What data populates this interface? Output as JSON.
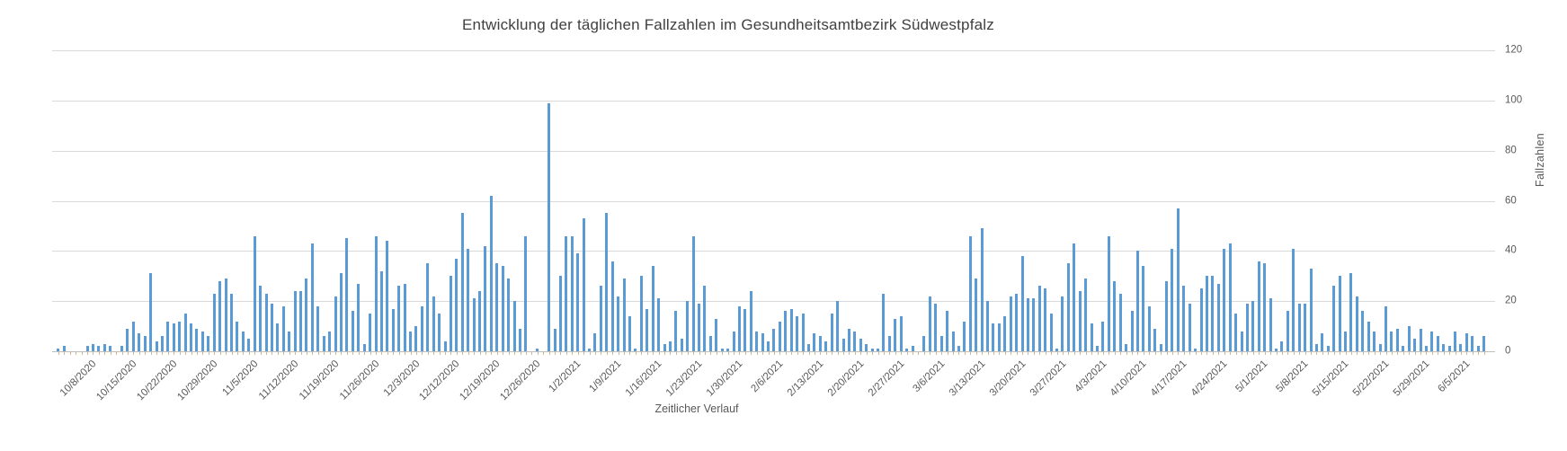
{
  "chart_data": {
    "type": "bar",
    "title": "Entwicklung der täglichen Fallzahlen im Gesundheitsamtbezirk Südwestpfalz",
    "xlabel": "Zeitlicher Verlauf",
    "ylabel": "Fallzahlen",
    "ylim": [
      0,
      120
    ],
    "yticks": [
      0,
      20,
      40,
      60,
      80,
      100,
      120
    ],
    "grid": true,
    "legend": false,
    "bar_color": "#5B9BD5",
    "gridline_color": "#d9d9d9",
    "axis_text_color": "#595959",
    "title_color": "#404040",
    "label_every": 7,
    "first_label_index": 5,
    "x_tick_labels": [
      "10/8/2020",
      "10/15/2020",
      "10/22/2020",
      "10/29/2020",
      "11/5/2020",
      "11/12/2020",
      "11/19/2020",
      "11/26/2020",
      "12/3/2020",
      "12/12/2020",
      "12/19/2020",
      "12/26/2020",
      "1/2/2021",
      "1/9/2021",
      "1/16/2021",
      "1/23/2021",
      "1/30/2021",
      "2/6/2021",
      "2/13/2021",
      "2/20/2021",
      "2/27/2021",
      "3/6/2021",
      "3/13/2021",
      "3/20/2021",
      "3/27/2021",
      "4/3/2021",
      "4/10/2021",
      "4/17/2021",
      "4/24/2021",
      "5/1/2021",
      "5/8/2021",
      "5/15/2021",
      "5/22/2021",
      "5/29/2021",
      "6/5/2021"
    ],
    "dates": [
      "10/3/2020",
      "10/4/2020",
      "10/5/2020",
      "10/6/2020",
      "10/7/2020",
      "10/8/2020",
      "10/9/2020",
      "10/10/2020",
      "10/11/2020",
      "10/12/2020",
      "10/13/2020",
      "10/14/2020",
      "10/15/2020",
      "10/16/2020",
      "10/17/2020",
      "10/18/2020",
      "10/19/2020",
      "10/20/2020",
      "10/21/2020",
      "10/22/2020",
      "10/23/2020",
      "10/24/2020",
      "10/25/2020",
      "10/26/2020",
      "10/27/2020",
      "10/28/2020",
      "10/29/2020",
      "10/30/2020",
      "10/31/2020",
      "11/1/2020",
      "11/2/2020",
      "11/3/2020",
      "11/4/2020",
      "11/5/2020",
      "11/6/2020",
      "11/7/2020",
      "11/8/2020",
      "11/9/2020",
      "11/10/2020",
      "11/11/2020",
      "11/12/2020",
      "11/13/2020",
      "11/14/2020",
      "11/15/2020",
      "11/16/2020",
      "11/17/2020",
      "11/18/2020",
      "11/19/2020",
      "11/20/2020",
      "11/21/2020",
      "11/22/2020",
      "11/23/2020",
      "11/24/2020",
      "11/25/2020",
      "11/26/2020",
      "11/27/2020",
      "11/28/2020",
      "11/29/2020",
      "11/30/2020",
      "12/1/2020",
      "12/2/2020",
      "12/3/2020",
      "12/4/2020",
      "12/5/2020",
      "12/8/2020",
      "12/9/2020",
      "12/10/2020",
      "12/11/2020",
      "12/12/2020",
      "12/13/2020",
      "12/14/2020",
      "12/15/2020",
      "12/16/2020",
      "12/17/2020",
      "12/18/2020",
      "12/19/2020",
      "12/20/2020",
      "12/21/2020",
      "12/22/2020",
      "12/23/2020",
      "12/24/2020",
      "12/25/2020",
      "12/26/2020",
      "12/27/2020",
      "12/28/2020",
      "12/29/2020",
      "12/30/2020",
      "12/31/2020",
      "1/1/2021",
      "1/2/2021",
      "1/3/2021",
      "1/4/2021",
      "1/5/2021",
      "1/6/2021",
      "1/7/2021",
      "1/8/2021",
      "1/9/2021",
      "1/10/2021",
      "1/11/2021",
      "1/12/2021",
      "1/13/2021",
      "1/14/2021",
      "1/15/2021",
      "1/16/2021",
      "1/17/2021",
      "1/18/2021",
      "1/19/2021",
      "1/20/2021",
      "1/21/2021",
      "1/22/2021",
      "1/23/2021",
      "1/24/2021",
      "1/25/2021",
      "1/26/2021",
      "1/27/2021",
      "1/28/2021",
      "1/29/2021",
      "1/30/2021",
      "1/31/2021",
      "2/1/2021",
      "2/2/2021",
      "2/3/2021",
      "2/4/2021",
      "2/5/2021",
      "2/6/2021",
      "2/7/2021",
      "2/8/2021",
      "2/9/2021",
      "2/10/2021",
      "2/11/2021",
      "2/12/2021",
      "2/13/2021",
      "2/14/2021",
      "2/15/2021",
      "2/16/2021",
      "2/17/2021",
      "2/18/2021",
      "2/19/2021",
      "2/20/2021",
      "2/21/2021",
      "2/22/2021",
      "2/23/2021",
      "2/24/2021",
      "2/25/2021",
      "2/26/2021",
      "2/27/2021",
      "2/28/2021",
      "3/1/2021",
      "3/2/2021",
      "3/3/2021",
      "3/4/2021",
      "3/5/2021",
      "3/6/2021",
      "3/7/2021",
      "3/8/2021",
      "3/9/2021",
      "3/10/2021",
      "3/11/2021",
      "3/12/2021",
      "3/13/2021",
      "3/14/2021",
      "3/15/2021",
      "3/16/2021",
      "3/17/2021",
      "3/18/2021",
      "3/19/2021",
      "3/20/2021",
      "3/21/2021",
      "3/22/2021",
      "3/23/2021",
      "3/24/2021",
      "3/25/2021",
      "3/26/2021",
      "3/27/2021",
      "3/28/2021",
      "3/29/2021",
      "3/30/2021",
      "3/31/2021",
      "4/1/2021",
      "4/2/2021",
      "4/3/2021",
      "4/4/2021",
      "4/5/2021",
      "4/6/2021",
      "4/7/2021",
      "4/8/2021",
      "4/9/2021",
      "4/10/2021",
      "4/11/2021",
      "4/12/2021",
      "4/13/2021",
      "4/14/2021",
      "4/15/2021",
      "4/16/2021",
      "4/17/2021",
      "4/18/2021",
      "4/19/2021",
      "4/20/2021",
      "4/21/2021",
      "4/22/2021",
      "4/23/2021",
      "4/24/2021",
      "4/25/2021",
      "4/26/2021",
      "4/27/2021",
      "4/28/2021",
      "4/29/2021",
      "4/30/2021",
      "5/1/2021",
      "5/2/2021",
      "5/3/2021",
      "5/4/2021",
      "5/5/2021",
      "5/6/2021",
      "5/7/2021",
      "5/8/2021",
      "5/9/2021",
      "5/10/2021",
      "5/11/2021",
      "5/12/2021",
      "5/13/2021",
      "5/14/2021",
      "5/15/2021",
      "5/16/2021",
      "5/17/2021",
      "5/18/2021",
      "5/19/2021",
      "5/20/2021",
      "5/21/2021",
      "5/22/2021",
      "5/23/2021",
      "5/24/2021",
      "5/25/2021",
      "5/26/2021",
      "5/27/2021",
      "5/28/2021",
      "5/29/2021",
      "5/30/2021",
      "5/31/2021",
      "6/1/2021",
      "6/2/2021",
      "6/3/2021",
      "6/4/2021",
      "6/5/2021",
      "6/6/2021",
      "6/7/2021",
      "6/8/2021",
      "6/9/2021"
    ],
    "values": [
      1,
      2,
      0,
      0,
      0,
      2,
      3,
      2,
      3,
      2,
      0,
      2,
      9,
      12,
      7,
      6,
      31,
      4,
      6,
      12,
      11,
      12,
      15,
      11,
      9,
      8,
      6,
      23,
      28,
      29,
      23,
      12,
      8,
      5,
      46,
      26,
      23,
      19,
      11,
      18,
      8,
      24,
      24,
      29,
      43,
      18,
      6,
      8,
      22,
      31,
      45,
      16,
      27,
      3,
      15,
      46,
      32,
      44,
      17,
      26,
      27,
      8,
      10,
      18,
      35,
      22,
      15,
      4,
      30,
      37,
      55,
      41,
      21,
      24,
      42,
      62,
      35,
      34,
      29,
      20,
      9,
      46,
      0,
      1,
      0,
      99,
      9,
      30,
      46,
      46,
      39,
      53,
      1,
      7,
      26,
      55,
      36,
      22,
      29,
      14,
      1,
      30,
      17,
      34,
      21,
      3,
      4,
      16,
      5,
      20,
      46,
      19,
      26,
      6,
      13,
      1,
      1,
      8,
      18,
      17,
      24,
      8,
      7,
      4,
      9,
      12,
      16,
      17,
      14,
      15,
      3,
      7,
      6,
      4,
      15,
      20,
      5,
      9,
      8,
      5,
      3,
      1,
      1,
      23,
      6,
      13,
      14,
      1,
      2,
      0,
      6,
      22,
      19,
      6,
      16,
      8,
      2,
      12,
      46,
      29,
      49,
      20,
      11,
      11,
      14,
      22,
      23,
      38,
      21,
      21,
      26,
      25,
      15,
      1,
      22,
      35,
      43,
      24,
      29,
      11,
      2,
      12,
      46,
      28,
      23,
      3,
      16,
      40,
      34,
      18,
      9,
      3,
      28,
      41,
      57,
      26,
      19,
      1,
      25,
      30,
      30,
      27,
      41,
      43,
      15,
      8,
      19,
      20,
      36,
      35,
      21,
      1,
      4,
      16,
      41,
      19,
      19,
      33,
      3,
      7,
      2,
      26,
      30,
      8,
      31,
      22,
      16,
      12,
      8,
      3,
      18,
      8,
      9,
      2,
      10,
      5,
      9,
      2,
      8,
      6,
      3,
      2,
      8,
      3,
      7,
      6,
      2,
      6
    ]
  }
}
